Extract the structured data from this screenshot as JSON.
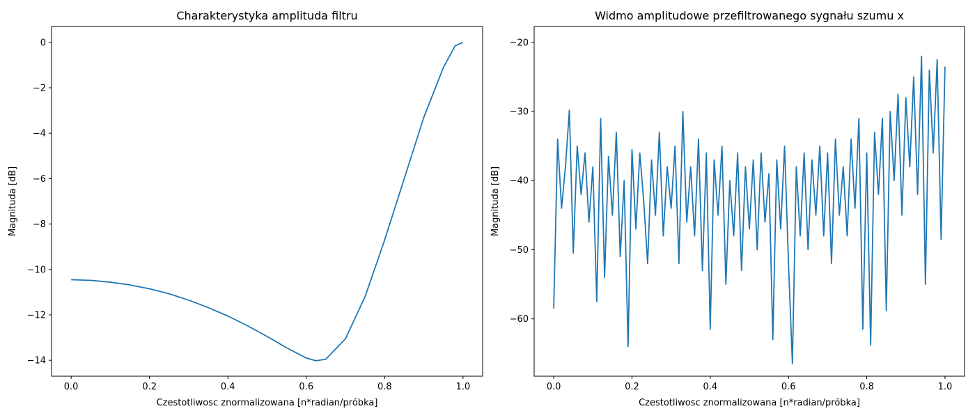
{
  "chart_data": [
    {
      "type": "line",
      "title": "Charakterystyka amplituda filtru",
      "xlabel": "Czestotliwosc znormalizowana [n*radian/próbka]",
      "ylabel": "Magnituda [dB]",
      "xlim": [
        -0.05,
        1.05
      ],
      "ylim": [
        -14.7,
        0.7
      ],
      "xticks": [
        0.0,
        0.2,
        0.4,
        0.6,
        0.8,
        1.0
      ],
      "xtick_labels": [
        "0.0",
        "0.2",
        "0.4",
        "0.6",
        "0.8",
        "1.0"
      ],
      "yticks": [
        0,
        -2,
        -4,
        -6,
        -8,
        -10,
        -12,
        -14
      ],
      "ytick_labels": [
        "0",
        "−2",
        "−4",
        "−6",
        "−8",
        "−10",
        "−12",
        "−14"
      ],
      "grid": false,
      "color": "#1f77b4",
      "series": [
        {
          "x": [
            0.0,
            0.05,
            0.1,
            0.15,
            0.2,
            0.25,
            0.3,
            0.35,
            0.4,
            0.45,
            0.5,
            0.55,
            0.6,
            0.625,
            0.65,
            0.7,
            0.75,
            0.8,
            0.85,
            0.9,
            0.95,
            0.98,
            1.0
          ],
          "y": [
            -10.45,
            -10.48,
            -10.56,
            -10.68,
            -10.85,
            -11.07,
            -11.35,
            -11.68,
            -12.05,
            -12.48,
            -12.95,
            -13.45,
            -13.9,
            -14.02,
            -13.95,
            -13.05,
            -11.2,
            -8.7,
            -6.0,
            -3.3,
            -1.1,
            -0.15,
            0.0
          ]
        }
      ]
    },
    {
      "type": "line",
      "title": "Widmo amplitudowe przefiltrowanego sygnału szumu x",
      "xlabel": "Czestotliwosc znormalizowana [n*radian/próbka]",
      "ylabel": "Magnituda [dB]",
      "xlim": [
        -0.05,
        1.05
      ],
      "ylim": [
        -68.3,
        -17.7
      ],
      "xticks": [
        0.0,
        0.2,
        0.4,
        0.6,
        0.8,
        1.0
      ],
      "xtick_labels": [
        "0.0",
        "0.2",
        "0.4",
        "0.6",
        "0.8",
        "1.0"
      ],
      "yticks": [
        -20,
        -30,
        -40,
        -50,
        -60
      ],
      "ytick_labels": [
        "−20",
        "−30",
        "−40",
        "−50",
        "−60"
      ],
      "grid": false,
      "color": "#1f77b4",
      "series": [
        {
          "x": [
            0.0,
            0.01,
            0.02,
            0.03,
            0.04,
            0.05,
            0.06,
            0.07,
            0.08,
            0.09,
            0.1,
            0.11,
            0.12,
            0.13,
            0.14,
            0.15,
            0.16,
            0.17,
            0.18,
            0.19,
            0.2,
            0.21,
            0.22,
            0.23,
            0.24,
            0.25,
            0.26,
            0.27,
            0.28,
            0.29,
            0.3,
            0.31,
            0.32,
            0.33,
            0.34,
            0.35,
            0.36,
            0.37,
            0.38,
            0.39,
            0.4,
            0.41,
            0.42,
            0.43,
            0.44,
            0.45,
            0.46,
            0.47,
            0.48,
            0.49,
            0.5,
            0.51,
            0.52,
            0.53,
            0.54,
            0.55,
            0.56,
            0.57,
            0.58,
            0.59,
            0.6,
            0.61,
            0.62,
            0.63,
            0.64,
            0.65,
            0.66,
            0.67,
            0.68,
            0.69,
            0.7,
            0.71,
            0.72,
            0.73,
            0.74,
            0.75,
            0.76,
            0.77,
            0.78,
            0.79,
            0.8,
            0.81,
            0.82,
            0.83,
            0.84,
            0.85,
            0.86,
            0.87,
            0.88,
            0.89,
            0.9,
            0.91,
            0.92,
            0.93,
            0.94,
            0.95,
            0.96,
            0.97,
            0.98,
            0.99,
            1.0
          ],
          "y": [
            -58.5,
            -34.0,
            -44.0,
            -38.0,
            -29.8,
            -50.5,
            -35.0,
            -42.0,
            -36.0,
            -46.0,
            -38.0,
            -57.5,
            -31.0,
            -54.0,
            -36.5,
            -45.0,
            -33.0,
            -51.0,
            -40.0,
            -64.0,
            -35.5,
            -47.0,
            -36.0,
            -43.0,
            -52.0,
            -37.0,
            -45.0,
            -33.0,
            -48.0,
            -38.0,
            -44.0,
            -35.0,
            -52.0,
            -30.0,
            -46.0,
            -38.0,
            -48.0,
            -34.0,
            -53.0,
            -36.0,
            -61.5,
            -37.0,
            -45.0,
            -35.0,
            -55.0,
            -40.0,
            -48.0,
            -36.0,
            -53.0,
            -38.0,
            -47.0,
            -37.0,
            -50.0,
            -36.0,
            -46.0,
            -39.0,
            -63.0,
            -37.0,
            -47.0,
            -35.0,
            -52.0,
            -66.5,
            -38.0,
            -48.0,
            -36.0,
            -50.0,
            -37.0,
            -45.0,
            -35.0,
            -48.0,
            -36.0,
            -52.0,
            -34.0,
            -45.0,
            -38.0,
            -48.0,
            -34.0,
            -44.0,
            -31.0,
            -61.5,
            -36.0,
            -63.8,
            -33.0,
            -42.0,
            -31.0,
            -58.8,
            -30.0,
            -40.0,
            -27.5,
            -45.0,
            -28.0,
            -38.0,
            -25.0,
            -42.0,
            -22.0,
            -55.0,
            -24.0,
            -36.0,
            -22.5,
            -48.5,
            -23.5
          ]
        }
      ]
    }
  ]
}
